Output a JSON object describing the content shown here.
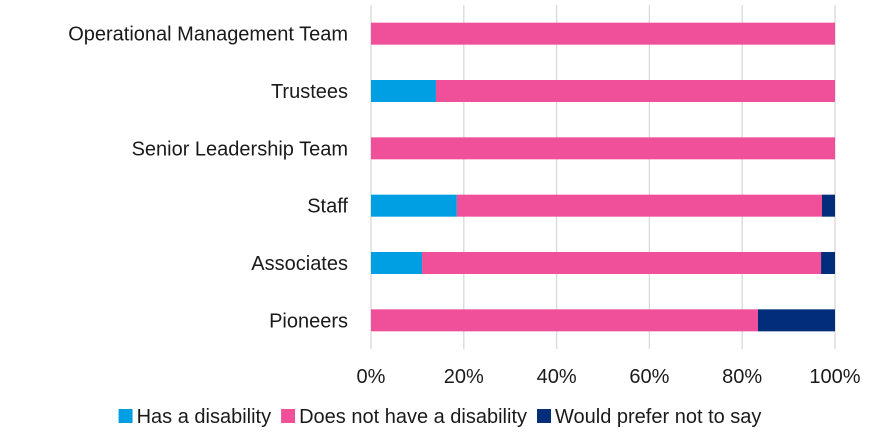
{
  "chart_data": {
    "type": "bar",
    "orientation": "horizontal",
    "stacked": true,
    "title": "",
    "xlabel": "",
    "ylabel": "",
    "xlim": [
      0,
      100
    ],
    "x_tick_labels": [
      "0%",
      "20%",
      "40%",
      "60%",
      "80%",
      "100%"
    ],
    "x_tick_values": [
      0,
      20,
      40,
      60,
      80,
      100
    ],
    "grid": "vertical",
    "legend_position": "bottom",
    "categories": [
      "Operational Management Team",
      "Trustees",
      "Senior Leadership Team",
      "Staff",
      "Associates",
      "Pioneers"
    ],
    "series": [
      {
        "name": "Has a disability",
        "color": "#009fe3",
        "values": [
          0,
          14,
          0,
          18.5,
          11,
          0
        ]
      },
      {
        "name": "Does not have a disability",
        "color": "#f0509a",
        "values": [
          100,
          86,
          100,
          78.7,
          86,
          83.4
        ]
      },
      {
        "name": "Would prefer not to say",
        "color": "#012d7a",
        "values": [
          0,
          0,
          0,
          2.8,
          3,
          16.6
        ]
      }
    ]
  }
}
